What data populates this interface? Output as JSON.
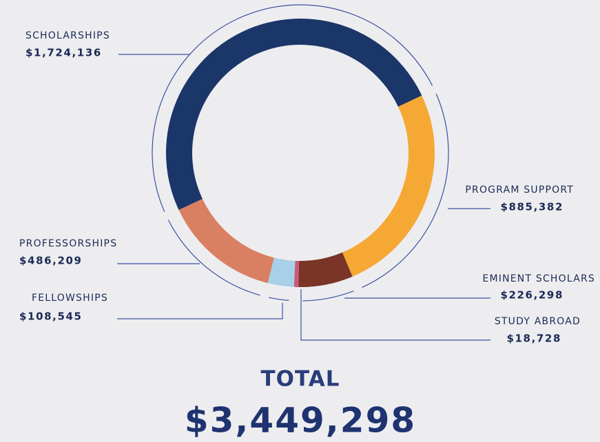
{
  "chart_data": {
    "type": "donut",
    "categories": [
      "SCHOLARSHIPS",
      "PROGRAM SUPPORT",
      "EMINENT SCHOLARS",
      "STUDY ABROAD",
      "FELLOWSHIPS",
      "PROFESSORSHIPS"
    ],
    "values": [
      1724136,
      885382,
      226298,
      18728,
      108545,
      486209
    ],
    "value_labels": [
      "$1,724,136",
      "$885,382",
      "$226,298",
      "$18,728",
      "$108,545",
      "$486,209"
    ],
    "colors": [
      "#1b3668",
      "#f5a834",
      "#7a3526",
      "#c85a7a",
      "#a8d0e8",
      "#d97f62"
    ],
    "total_title": "TOTAL",
    "total": {
      "value": 3449298,
      "label": "$3,449,298"
    }
  }
}
